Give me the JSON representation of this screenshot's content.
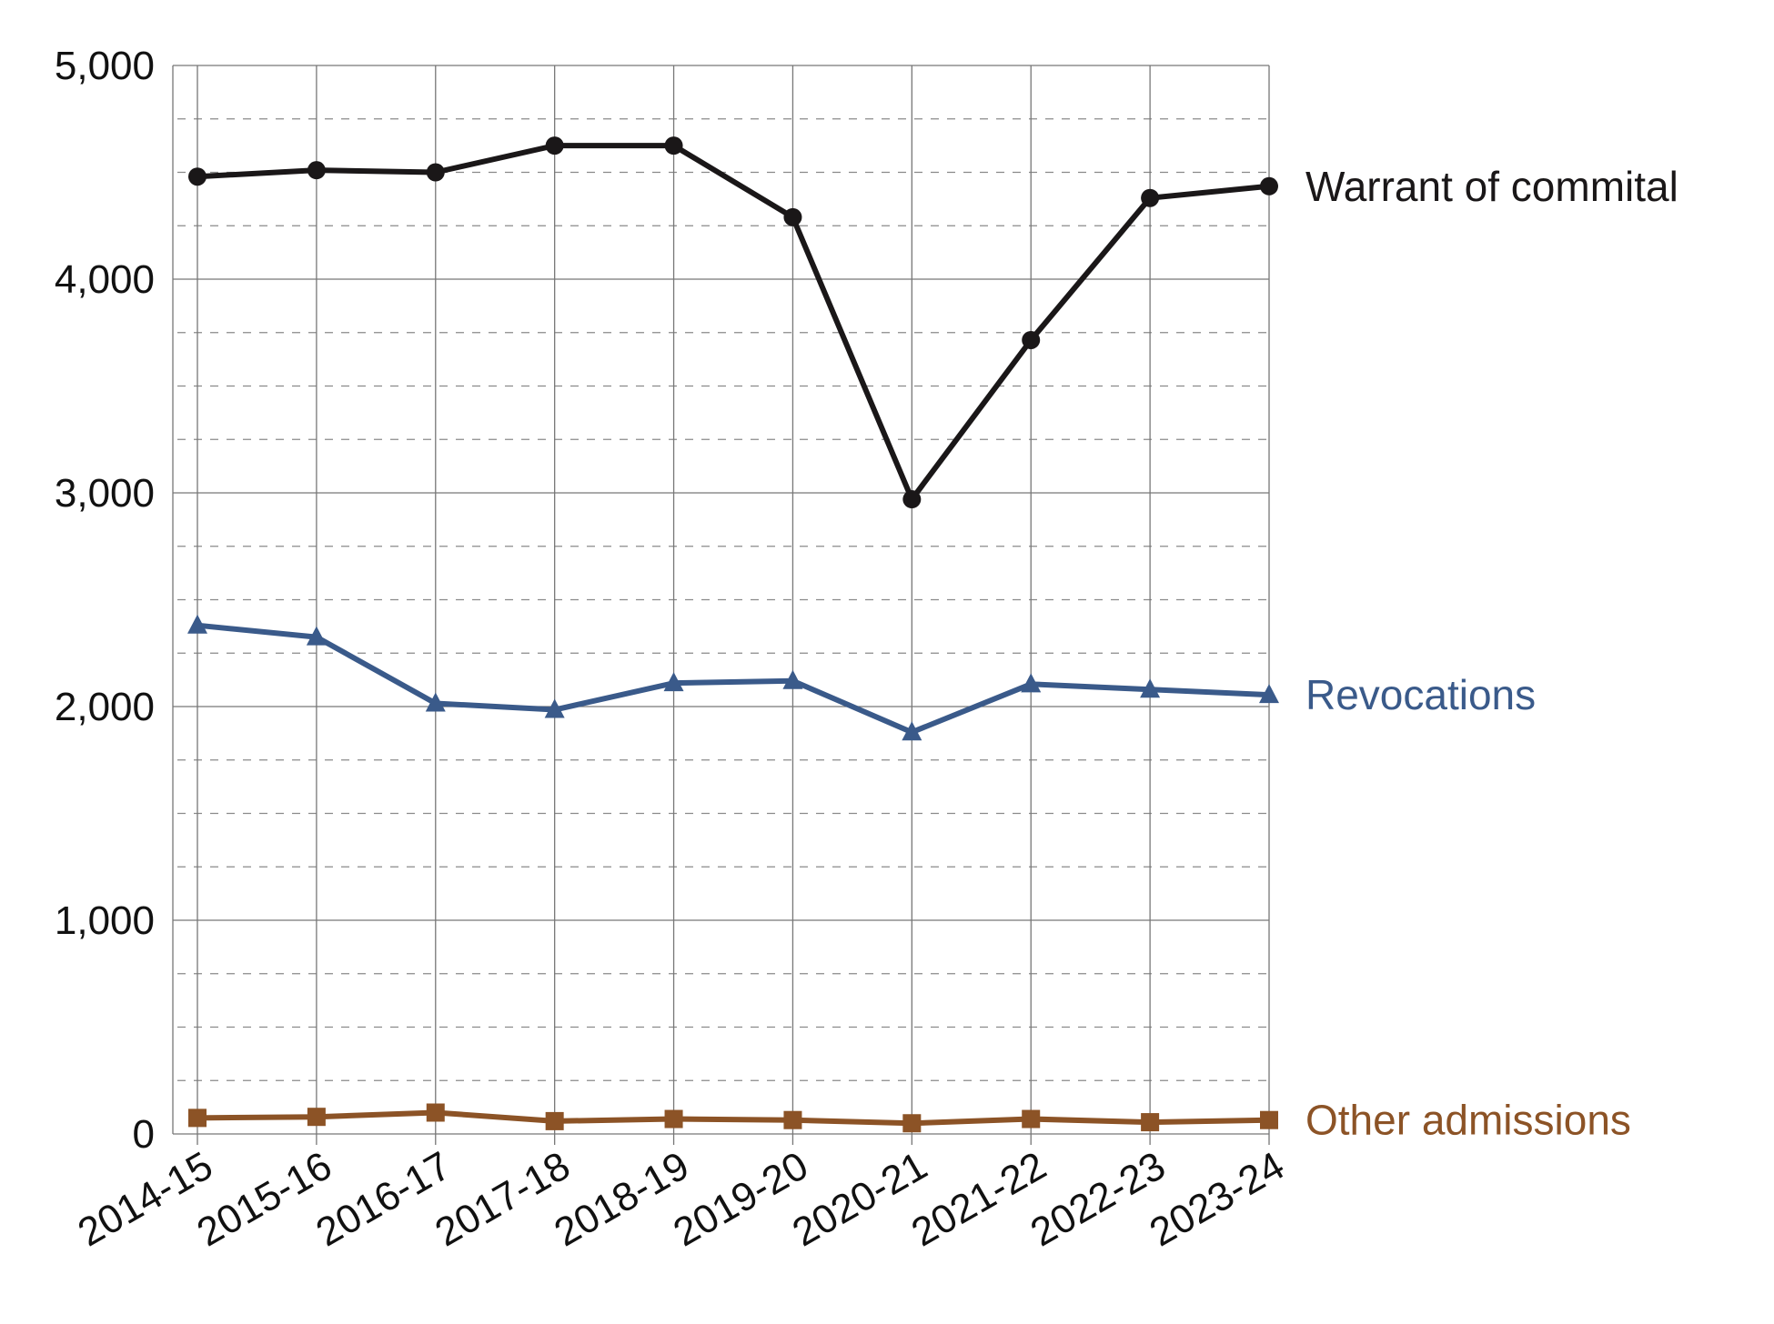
{
  "chart_data": {
    "type": "line",
    "title": "",
    "xlabel": "",
    "ylabel": "",
    "categories": [
      "2014-15",
      "2015-16",
      "2016-17",
      "2017-18",
      "2018-19",
      "2019-20",
      "2020-21",
      "2021-22",
      "2022-23",
      "2023-24"
    ],
    "ylim": [
      0,
      5000
    ],
    "yticks": [
      0,
      1000,
      2000,
      3000,
      4000,
      5000
    ],
    "ytick_labels": [
      "0",
      "1,000",
      "2,000",
      "3,000",
      "4,000",
      "5,000"
    ],
    "minor_grid_step": 250,
    "grid": true,
    "legend": "direct labels at right end of each line",
    "series": [
      {
        "name": "Warrant of commital",
        "color": "#1a1718",
        "marker": "circle",
        "values": [
          4480,
          4510,
          4500,
          4625,
          4625,
          4290,
          2970,
          3715,
          4380,
          4435
        ]
      },
      {
        "name": "Revocations",
        "color": "#3a5a8a",
        "marker": "triangle",
        "values": [
          2380,
          2325,
          2015,
          1985,
          2110,
          2120,
          1880,
          2105,
          2080,
          2055
        ]
      },
      {
        "name": "Other admissions",
        "color": "#8c5326",
        "marker": "square",
        "values": [
          75,
          80,
          100,
          60,
          70,
          65,
          50,
          70,
          55,
          65
        ]
      }
    ]
  }
}
